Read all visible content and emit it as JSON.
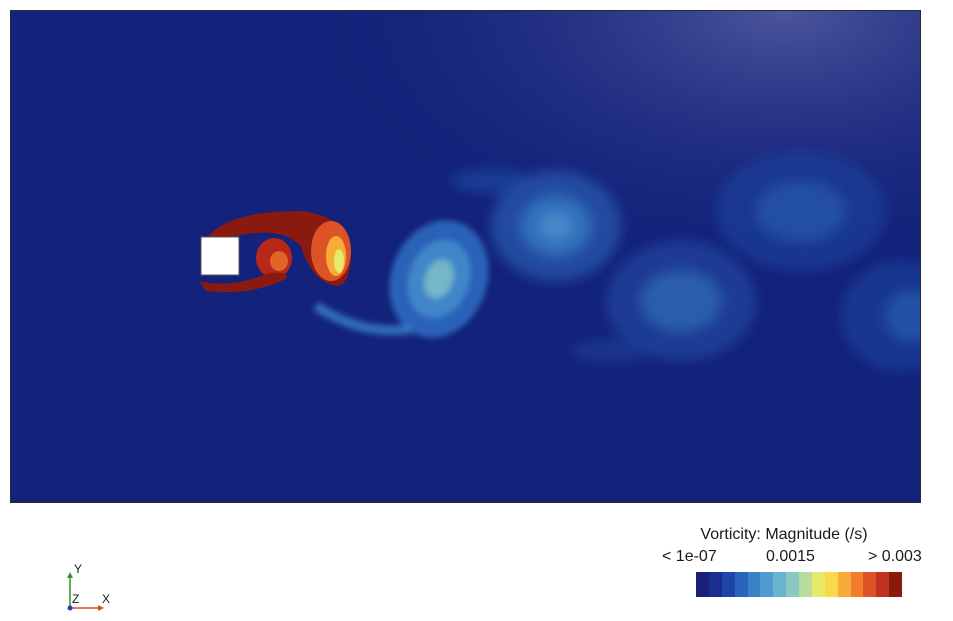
{
  "legend": {
    "title": "Vorticity: Magnitude (/s)",
    "tick_min": "< 1e-07",
    "tick_mid": "0.0015",
    "tick_max": "> 0.003",
    "colors": [
      "#1b1f7a",
      "#1a2e8e",
      "#1d46a8",
      "#2b64bd",
      "#3a82c8",
      "#4f9bd0",
      "#69b3cf",
      "#8ac9c0",
      "#b7dc9e",
      "#e5ea6a",
      "#fbd84a",
      "#f9ab3a",
      "#f07e2d",
      "#de5326",
      "#c23220",
      "#8a1a10"
    ]
  },
  "field": {
    "background_color": "#13227a",
    "obstacle_color": "#ffffff"
  },
  "axes": {
    "y": "Y",
    "z": "Z",
    "x": "X"
  }
}
